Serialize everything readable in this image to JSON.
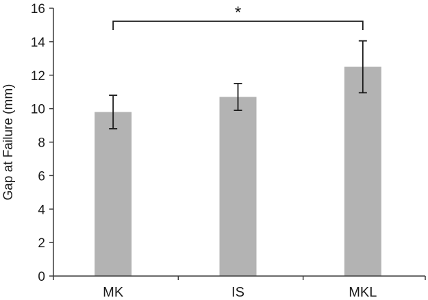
{
  "chart_data": {
    "type": "bar",
    "categories": [
      "MK",
      "IS",
      "MKL"
    ],
    "series": [
      {
        "values": [
          9.8,
          10.7,
          12.5
        ],
        "error": [
          1.0,
          0.8,
          1.55
        ]
      }
    ],
    "xlabel": "",
    "ylabel": "Gap at Failure (mm)",
    "ylim": [
      0,
      16
    ],
    "yticks": [
      0,
      2,
      4,
      6,
      8,
      10,
      12,
      14,
      16
    ],
    "grid": false,
    "legend": "none",
    "bar_color": "#b3b3b3",
    "annotations": [
      {
        "type": "significance-bracket",
        "from": "MK",
        "to": "MKL",
        "label": "*"
      }
    ]
  }
}
